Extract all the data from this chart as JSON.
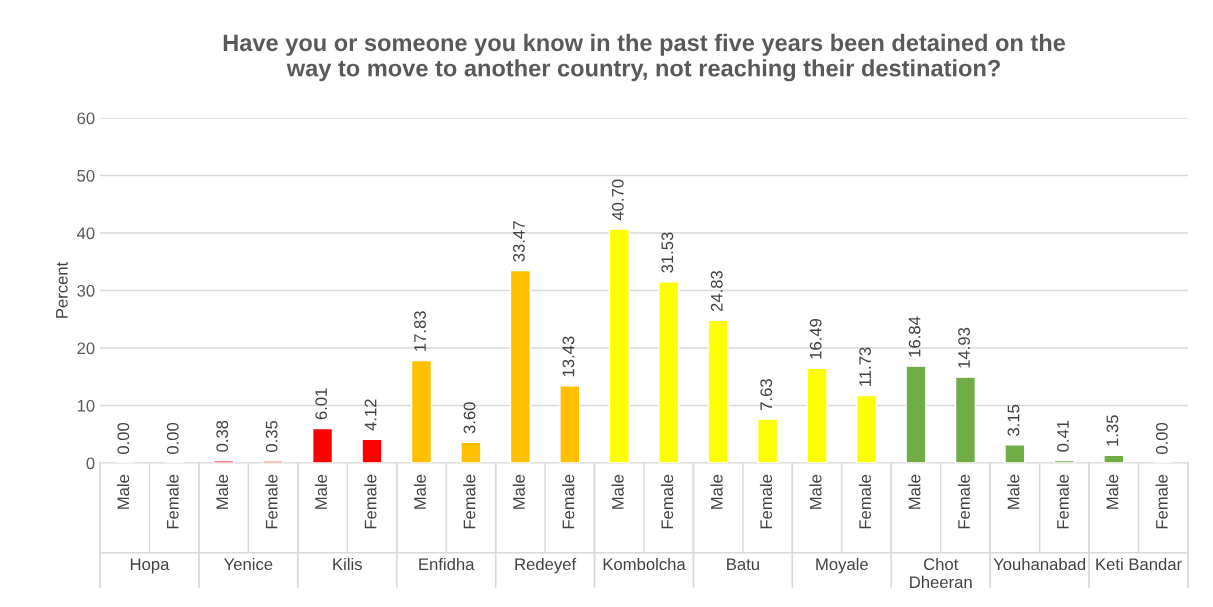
{
  "chart_data": {
    "type": "bar",
    "title": "Have you or someone you know in the past five years been detained on the\nway to move to another country, not reaching their destination?",
    "ylabel": "Percent",
    "categories": [
      "Male",
      "Female",
      "Male",
      "Female",
      "Male",
      "Female",
      "Male",
      "Female",
      "Male",
      "Female",
      "Male",
      "Female",
      "Male",
      "Female",
      "Male",
      "Female",
      "Male",
      "Female",
      "Male",
      "Female",
      "Male",
      "Female"
    ],
    "values": [
      0.0,
      0.0,
      0.38,
      0.35,
      6.01,
      4.12,
      17.83,
      3.6,
      33.47,
      13.43,
      40.7,
      31.53,
      24.83,
      7.63,
      16.49,
      11.73,
      16.84,
      14.93,
      3.15,
      0.41,
      1.35,
      0.0
    ],
    "value_labels": [
      "0.00",
      "0.00",
      "0.38",
      "0.35",
      "6.01",
      "4.12",
      "17.83",
      "3.60",
      "33.47",
      "13.43",
      "40.70",
      "31.53",
      "24.83",
      "7.63",
      "16.49",
      "11.73",
      "16.84",
      "14.93",
      "3.15",
      "0.41",
      "1.35",
      "0.00"
    ],
    "colors": [
      null,
      null,
      "#ff0000",
      "#ff0000",
      "#ff0000",
      "#ff0000",
      "#ffc000",
      "#ffc000",
      "#ffc000",
      "#ffc000",
      "#ffff00",
      "#ffff00",
      "#ffff00",
      "#ffff00",
      "#ffff00",
      "#ffff00",
      "#70ad47",
      "#70ad47",
      "#70ad47",
      "#70ad47",
      "#70ad47",
      null
    ],
    "annotations": [
      "Hopa",
      "Yenice",
      "Kilis",
      "Enfidha",
      "Redeyef",
      "Kombolcha",
      "Batu",
      "Moyale",
      "Chot\nDheeran",
      "Youhanabad",
      "Keti Bandar"
    ],
    "ylim": [
      0,
      60
    ],
    "yticks": [
      0,
      10,
      20,
      30,
      40,
      50,
      60
    ],
    "grid": "y"
  }
}
